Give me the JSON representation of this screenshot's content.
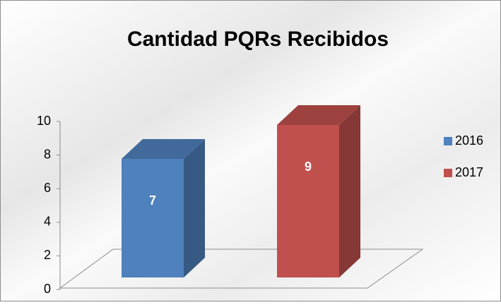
{
  "chart_data": {
    "type": "bar",
    "title": "Cantidad PQRs Recibidos",
    "categories": [
      null
    ],
    "series": [
      {
        "name": "2016",
        "color": "#4f81bd",
        "values": [
          7
        ]
      },
      {
        "name": "2017",
        "color": "#c0504d",
        "values": [
          9
        ]
      }
    ],
    "ylim": [
      0,
      10
    ],
    "yticks": [
      0,
      2,
      4,
      6,
      8,
      10
    ],
    "legend": "right"
  }
}
